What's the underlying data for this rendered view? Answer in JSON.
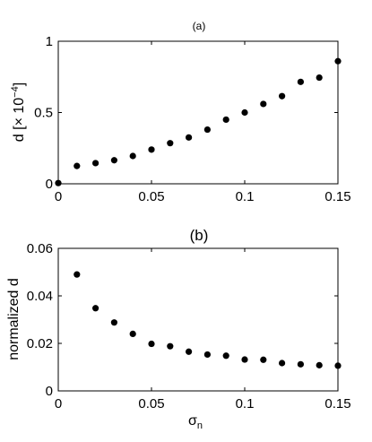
{
  "chart_data": [
    {
      "type": "scatter",
      "title": "(a)",
      "xlabel": "",
      "ylabel": "d [× 10",
      "ylabel_exponent": "−4",
      "ylabel_suffix": "]",
      "xlim": [
        0,
        0.15
      ],
      "ylim": [
        0,
        1
      ],
      "xticks": [
        0,
        0.05,
        0.1,
        0.15
      ],
      "xtick_labels": [
        "0",
        "0.05",
        "0.1",
        "0.15"
      ],
      "yticks": [
        0,
        0.5,
        1
      ],
      "ytick_labels": [
        "0",
        "0.5",
        "1"
      ],
      "grid": false,
      "marker_color": "#000000",
      "series": [
        {
          "x": [
            0,
            0.01,
            0.02,
            0.03,
            0.04,
            0.05,
            0.06,
            0.07,
            0.08,
            0.09,
            0.1,
            0.11,
            0.12,
            0.13,
            0.14,
            0.15
          ],
          "y": [
            0.005,
            0.125,
            0.145,
            0.165,
            0.195,
            0.24,
            0.285,
            0.325,
            0.38,
            0.45,
            0.5,
            0.56,
            0.615,
            0.715,
            0.745,
            0.86
          ]
        }
      ]
    },
    {
      "type": "scatter",
      "title": "(b)",
      "xlabel": "σ",
      "xlabel_subscript": "n",
      "ylabel": "normalized d",
      "xlim": [
        0,
        0.15
      ],
      "ylim": [
        0,
        0.06
      ],
      "xticks": [
        0,
        0.05,
        0.1,
        0.15
      ],
      "xtick_labels": [
        "0",
        "0.05",
        "0.1",
        "0.15"
      ],
      "yticks": [
        0,
        0.02,
        0.04,
        0.06
      ],
      "ytick_labels": [
        "0",
        "0.02",
        "0.04",
        "0.06"
      ],
      "grid": false,
      "marker_color": "#000000",
      "series": [
        {
          "x": [
            0.01,
            0.02,
            0.03,
            0.04,
            0.05,
            0.06,
            0.07,
            0.08,
            0.09,
            0.1,
            0.11,
            0.12,
            0.13,
            0.14,
            0.15
          ],
          "y": [
            0.049,
            0.0348,
            0.0288,
            0.024,
            0.0198,
            0.0188,
            0.0165,
            0.0153,
            0.0148,
            0.0132,
            0.0131,
            0.0117,
            0.0112,
            0.0108,
            0.0106
          ]
        }
      ]
    }
  ]
}
